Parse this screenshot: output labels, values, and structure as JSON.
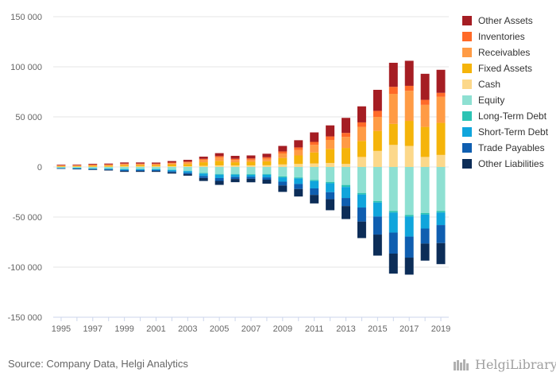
{
  "source": "Source: Company Data, Helgi Analytics",
  "brand": {
    "name": "HelgiLibrary."
  },
  "chart_data": {
    "type": "bar",
    "stacked": true,
    "title": "",
    "xlabel": "",
    "ylabel": "",
    "ylim": [
      -150000,
      150000
    ],
    "yticks": [
      -150000,
      -100000,
      -50000,
      0,
      50000,
      100000,
      150000
    ],
    "ytick_labels": [
      "-150 000",
      "-100 000",
      "-50 000",
      "0",
      "50 000",
      "100 000",
      "150 000"
    ],
    "xtick_labels": [
      "1995",
      "1997",
      "1999",
      "2001",
      "2003",
      "2005",
      "2007",
      "2009",
      "2011",
      "2013",
      "2015",
      "2017",
      "2019"
    ],
    "grid": true,
    "legend_position": "right",
    "categories": [
      "1995",
      "1996",
      "1997",
      "1998",
      "1999",
      "2000",
      "2001",
      "2002",
      "2003",
      "2004",
      "2005",
      "2006",
      "2007",
      "2008",
      "2009",
      "2010",
      "2011",
      "2012",
      "2013",
      "2014",
      "2015",
      "2016",
      "2017",
      "2018",
      "2019"
    ],
    "series": [
      {
        "name": "Other Assets",
        "side": "assets",
        "color": "#a51d23",
        "values": [
          600,
          600,
          800,
          900,
          1100,
          1100,
          1100,
          1500,
          1800,
          2200,
          3000,
          2900,
          3000,
          3500,
          5500,
          7200,
          9500,
          11000,
          15000,
          16000,
          21000,
          24000,
          25000,
          26000,
          23000
        ]
      },
      {
        "name": "Inventories",
        "side": "assets",
        "color": "#ff6a28",
        "values": [
          300,
          300,
          400,
          400,
          500,
          500,
          500,
          600,
          700,
          900,
          1200,
          1200,
          1300,
          1500,
          2000,
          2500,
          3000,
          3500,
          4000,
          4500,
          6000,
          7000,
          5000,
          5000,
          4000
        ]
      },
      {
        "name": "Receivables",
        "side": "assets",
        "color": "#ff9b45",
        "values": [
          500,
          600,
          700,
          800,
          1100,
          1100,
          1000,
          1400,
          1700,
          2500,
          3500,
          2300,
          2000,
          2500,
          4500,
          5500,
          7500,
          9000,
          11000,
          14000,
          14000,
          30000,
          30000,
          22000,
          26000
        ]
      },
      {
        "name": "Fixed Assets",
        "side": "assets",
        "color": "#f5b40a",
        "values": [
          500,
          600,
          800,
          900,
          1200,
          1200,
          1200,
          1700,
          2100,
          3500,
          4500,
          3200,
          3600,
          4000,
          6500,
          8500,
          11000,
          14000,
          16000,
          16000,
          20000,
          21000,
          25000,
          30000,
          32000
        ]
      },
      {
        "name": "Cash",
        "side": "assets",
        "color": "#fcd88a",
        "values": [
          300,
          300,
          400,
          400,
          600,
          600,
          600,
          700,
          800,
          1200,
          1600,
          1500,
          1600,
          1700,
          2500,
          3000,
          3500,
          4000,
          3000,
          10000,
          16000,
          22000,
          21000,
          10000,
          12000
        ]
      },
      {
        "name": "Equity",
        "side": "liabilities",
        "color": "#8ee0d2",
        "values": [
          800,
          1000,
          1300,
          1500,
          2000,
          2000,
          2000,
          2700,
          3800,
          6000,
          7000,
          7000,
          7200,
          7000,
          9500,
          10500,
          13000,
          15000,
          18000,
          26000,
          34000,
          44000,
          48000,
          46000,
          44000
        ]
      },
      {
        "name": "Long-Term Debt",
        "side": "liabilities",
        "color": "#2cc3b4",
        "values": [
          100,
          100,
          150,
          150,
          200,
          200,
          200,
          300,
          300,
          500,
          700,
          700,
          700,
          800,
          900,
          900,
          1000,
          1200,
          2000,
          1500,
          1500,
          1500,
          1500,
          1500,
          1500
        ]
      },
      {
        "name": "Short-Term Debt",
        "side": "liabilities",
        "color": "#10a5dc",
        "values": [
          400,
          500,
          600,
          700,
          1000,
          1000,
          1000,
          1300,
          1700,
          2500,
          3400,
          2300,
          2000,
          2600,
          4300,
          5600,
          7400,
          9000,
          11000,
          13000,
          14000,
          20000,
          20000,
          14000,
          12500
        ]
      },
      {
        "name": "Trade Payables",
        "side": "liabilities",
        "color": "#0f5eb0",
        "values": [
          300,
          400,
          500,
          600,
          800,
          800,
          800,
          1100,
          1400,
          2000,
          2800,
          2000,
          1900,
          2300,
          3800,
          5000,
          6500,
          7000,
          8000,
          14000,
          18000,
          21000,
          21000,
          15000,
          18000
        ]
      },
      {
        "name": "Other Liabilities",
        "side": "liabilities",
        "color": "#0c2d58",
        "values": [
          300,
          400,
          500,
          600,
          900,
          900,
          900,
          1200,
          1500,
          3000,
          4000,
          3200,
          3500,
          4000,
          6400,
          7500,
          8500,
          11000,
          13000,
          16500,
          21000,
          20000,
          17000,
          17000,
          21000
        ]
      }
    ]
  }
}
